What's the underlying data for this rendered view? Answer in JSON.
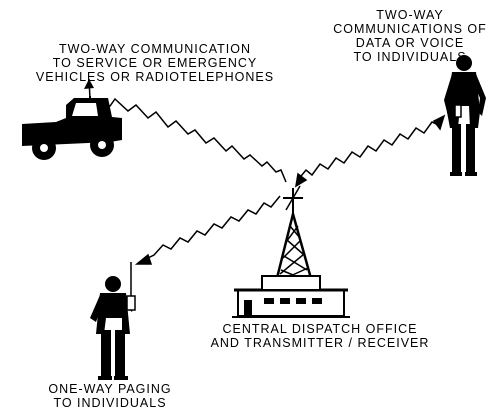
{
  "labels": {
    "vehicles": [
      "TWO-WAY COMMUNICATION",
      "TO SERVICE OR EMERGENCY",
      "VEHICLES OR RADIOTELEPHONES"
    ],
    "data_voice": [
      "TWO-WAY",
      "COMMUNICATIONS OF",
      "DATA OR VOICE",
      "TO INDIVIDUALS"
    ],
    "dispatch": [
      "CENTRAL DISPATCH OFFICE",
      "AND TRANSMITTER / RECEIVER"
    ],
    "paging": [
      "ONE-WAY PAGING",
      "TO INDIVIDUALS"
    ]
  },
  "icons": [
    "pickup-truck-icon",
    "standing-person-icon",
    "person-with-pager-icon",
    "radio-tower-icon",
    "dispatch-building-icon"
  ],
  "colors": {
    "ink": "#000000",
    "background": "#ffffff"
  }
}
